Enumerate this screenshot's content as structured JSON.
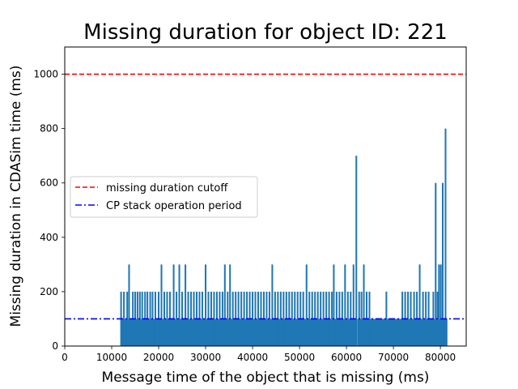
{
  "chart_data": {
    "type": "bar",
    "title": "Missing duration for object ID: 221",
    "xlabel": "Message time of the object that is missing (ms)",
    "ylabel": "Missing duration in CDASim time (ms)",
    "xlim": [
      0,
      85500
    ],
    "ylim": [
      0,
      1100
    ],
    "xticks": [
      0,
      10000,
      20000,
      30000,
      40000,
      50000,
      60000,
      70000,
      80000
    ],
    "yticks": [
      0,
      200,
      400,
      600,
      800,
      1000
    ],
    "grid": false,
    "legend_position": "center-left",
    "bar_color": "#1f77b4",
    "reference_lines": [
      {
        "name": "missing duration cutoff",
        "y": 1000,
        "color": "#ff0000",
        "style": "dashed"
      },
      {
        "name": "CP stack operation period",
        "y": 100,
        "color": "#0000ff",
        "style": "dashdot"
      }
    ],
    "series": [
      {
        "name": "missing duration",
        "default_value": 100,
        "x_range": [
          12000,
          81500
        ],
        "gaps": [
          [
            62000,
            62300
          ]
        ],
        "points": [
          {
            "x": 12000,
            "y": 200
          },
          {
            "x": 12600,
            "y": 200
          },
          {
            "x": 13300,
            "y": 200
          },
          {
            "x": 13700,
            "y": 300
          },
          {
            "x": 14500,
            "y": 200
          },
          {
            "x": 15000,
            "y": 200
          },
          {
            "x": 15500,
            "y": 200
          },
          {
            "x": 16000,
            "y": 200
          },
          {
            "x": 16500,
            "y": 200
          },
          {
            "x": 17100,
            "y": 200
          },
          {
            "x": 17600,
            "y": 200
          },
          {
            "x": 18200,
            "y": 200
          },
          {
            "x": 18700,
            "y": 200
          },
          {
            "x": 19300,
            "y": 200
          },
          {
            "x": 20000,
            "y": 200
          },
          {
            "x": 20600,
            "y": 300
          },
          {
            "x": 21200,
            "y": 200
          },
          {
            "x": 21800,
            "y": 200
          },
          {
            "x": 22400,
            "y": 200
          },
          {
            "x": 23200,
            "y": 300
          },
          {
            "x": 23800,
            "y": 200
          },
          {
            "x": 24400,
            "y": 300
          },
          {
            "x": 25000,
            "y": 200
          },
          {
            "x": 25700,
            "y": 300
          },
          {
            "x": 26300,
            "y": 200
          },
          {
            "x": 26900,
            "y": 200
          },
          {
            "x": 27500,
            "y": 200
          },
          {
            "x": 28100,
            "y": 200
          },
          {
            "x": 28700,
            "y": 200
          },
          {
            "x": 29300,
            "y": 200
          },
          {
            "x": 30000,
            "y": 300
          },
          {
            "x": 30600,
            "y": 200
          },
          {
            "x": 31200,
            "y": 200
          },
          {
            "x": 31800,
            "y": 200
          },
          {
            "x": 32400,
            "y": 200
          },
          {
            "x": 33000,
            "y": 200
          },
          {
            "x": 33600,
            "y": 200
          },
          {
            "x": 34100,
            "y": 300
          },
          {
            "x": 34700,
            "y": 200
          },
          {
            "x": 35200,
            "y": 300
          },
          {
            "x": 35800,
            "y": 200
          },
          {
            "x": 36400,
            "y": 200
          },
          {
            "x": 37000,
            "y": 200
          },
          {
            "x": 37600,
            "y": 200
          },
          {
            "x": 38200,
            "y": 200
          },
          {
            "x": 38800,
            "y": 200
          },
          {
            "x": 39400,
            "y": 200
          },
          {
            "x": 40000,
            "y": 200
          },
          {
            "x": 40600,
            "y": 200
          },
          {
            "x": 41200,
            "y": 200
          },
          {
            "x": 41800,
            "y": 200
          },
          {
            "x": 42400,
            "y": 200
          },
          {
            "x": 43000,
            "y": 200
          },
          {
            "x": 43600,
            "y": 200
          },
          {
            "x": 44200,
            "y": 300
          },
          {
            "x": 44800,
            "y": 200
          },
          {
            "x": 45400,
            "y": 200
          },
          {
            "x": 46000,
            "y": 200
          },
          {
            "x": 46600,
            "y": 200
          },
          {
            "x": 47200,
            "y": 200
          },
          {
            "x": 47800,
            "y": 200
          },
          {
            "x": 48400,
            "y": 200
          },
          {
            "x": 49000,
            "y": 200
          },
          {
            "x": 49600,
            "y": 200
          },
          {
            "x": 50200,
            "y": 200
          },
          {
            "x": 50800,
            "y": 200
          },
          {
            "x": 51500,
            "y": 300
          },
          {
            "x": 52100,
            "y": 200
          },
          {
            "x": 52700,
            "y": 200
          },
          {
            "x": 53300,
            "y": 200
          },
          {
            "x": 53900,
            "y": 200
          },
          {
            "x": 54500,
            "y": 200
          },
          {
            "x": 55100,
            "y": 200
          },
          {
            "x": 55700,
            "y": 200
          },
          {
            "x": 56300,
            "y": 200
          },
          {
            "x": 56900,
            "y": 200
          },
          {
            "x": 57300,
            "y": 300
          },
          {
            "x": 57900,
            "y": 200
          },
          {
            "x": 58500,
            "y": 200
          },
          {
            "x": 59100,
            "y": 200
          },
          {
            "x": 59700,
            "y": 300
          },
          {
            "x": 60300,
            "y": 200
          },
          {
            "x": 60900,
            "y": 200
          },
          {
            "x": 61500,
            "y": 300
          },
          {
            "x": 62100,
            "y": 700
          },
          {
            "x": 62700,
            "y": 200
          },
          {
            "x": 63200,
            "y": 200
          },
          {
            "x": 63700,
            "y": 300
          },
          {
            "x": 64300,
            "y": 200
          },
          {
            "x": 64900,
            "y": 200
          },
          {
            "x": 68500,
            "y": 200
          },
          {
            "x": 71900,
            "y": 200
          },
          {
            "x": 72500,
            "y": 200
          },
          {
            "x": 73100,
            "y": 200
          },
          {
            "x": 73700,
            "y": 200
          },
          {
            "x": 74400,
            "y": 200
          },
          {
            "x": 75000,
            "y": 200
          },
          {
            "x": 75600,
            "y": 300
          },
          {
            "x": 76300,
            "y": 200
          },
          {
            "x": 76900,
            "y": 200
          },
          {
            "x": 77500,
            "y": 200
          },
          {
            "x": 78500,
            "y": 200
          },
          {
            "x": 79000,
            "y": 600
          },
          {
            "x": 79400,
            "y": 200
          },
          {
            "x": 79700,
            "y": 300
          },
          {
            "x": 80100,
            "y": 300
          },
          {
            "x": 80500,
            "y": 600
          },
          {
            "x": 81100,
            "y": 800
          }
        ]
      }
    ]
  }
}
